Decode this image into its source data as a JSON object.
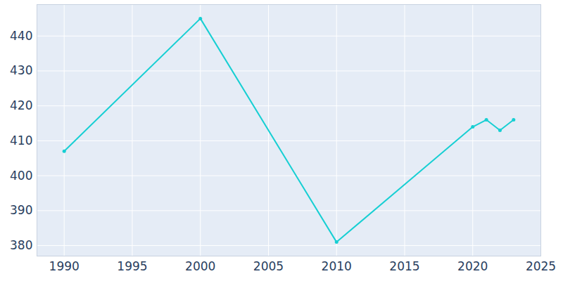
{
  "chart_data": {
    "type": "line",
    "x": [
      1990,
      2000,
      2010,
      2020,
      2021,
      2022,
      2023
    ],
    "values": [
      407,
      445,
      381,
      414,
      416,
      413,
      416
    ],
    "color": "#17cfd3",
    "marker": "circle",
    "xlim": [
      1988,
      2025
    ],
    "xticks": [
      1990,
      1995,
      2000,
      2005,
      2010,
      2015,
      2020,
      2025
    ],
    "ylim": [
      377,
      449
    ],
    "yticks": [
      380,
      390,
      400,
      410,
      420,
      430,
      440
    ],
    "grid": true
  }
}
